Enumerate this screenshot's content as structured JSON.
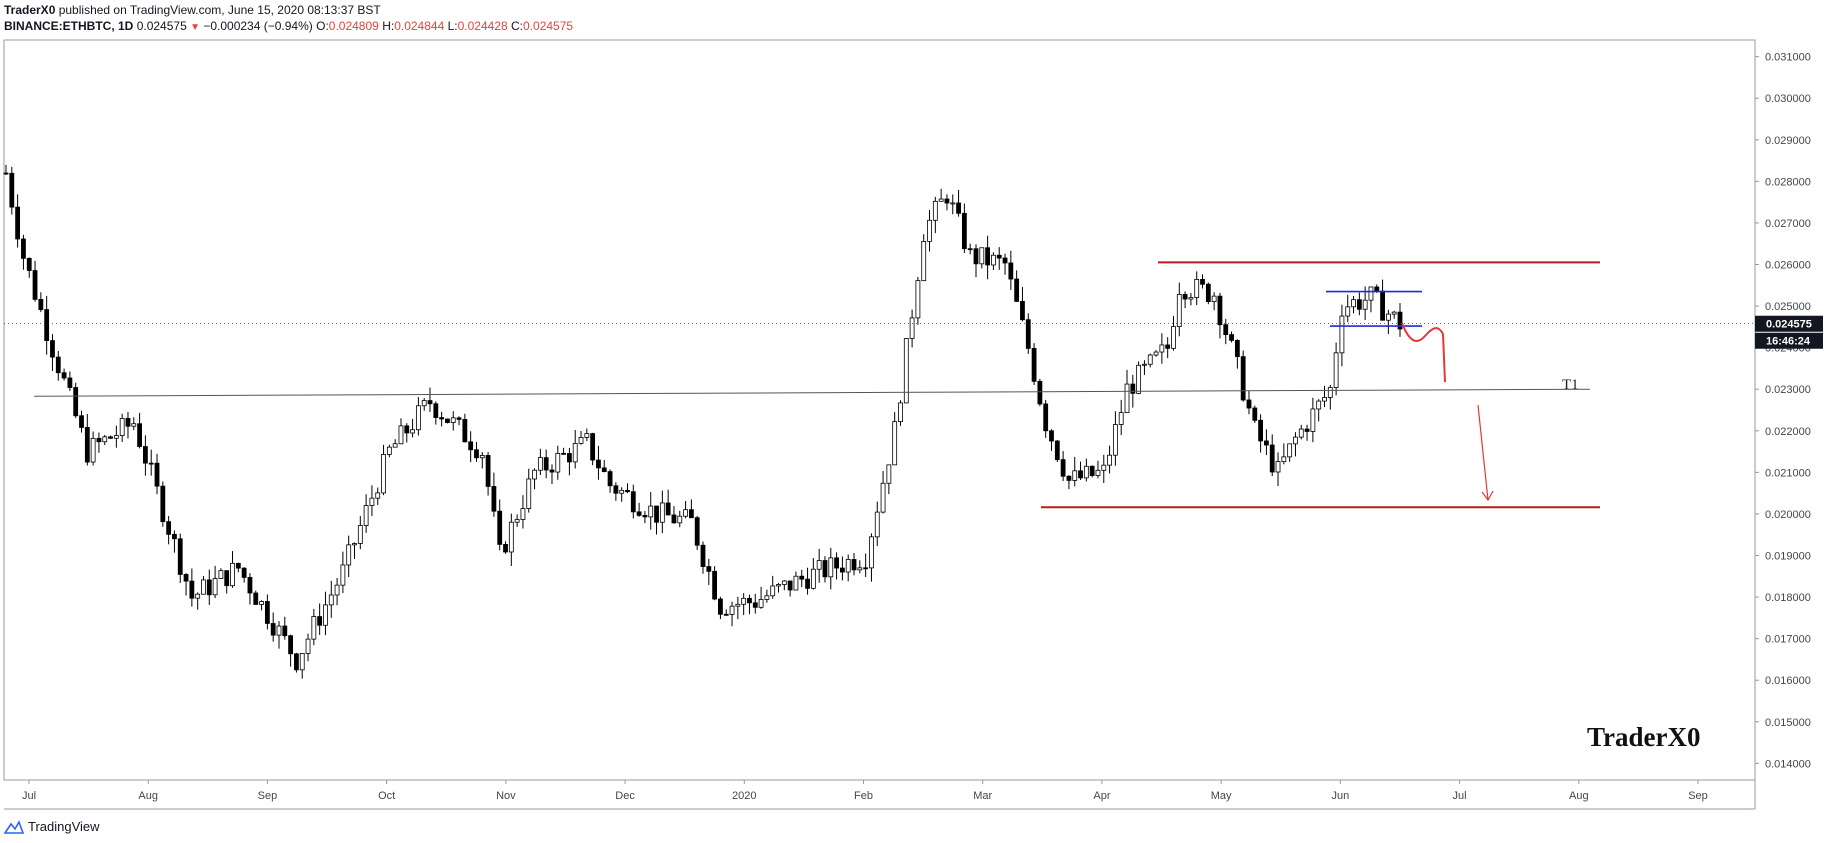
{
  "header": {
    "author": "TraderX0",
    "published_text": " published on TradingView.com, June 15, 2020 08:13:37 BST",
    "symbol": "BINANCE:ETHBTC, 1D",
    "last": "0.024575",
    "arrow": "▼",
    "change": "−0.000234 (−0.94%)",
    "o_label": "O:",
    "o_val": "0.024809",
    "h_label": "H:",
    "h_val": "0.024844",
    "l_label": "L:",
    "l_val": "0.024428",
    "c_label": "C:",
    "c_val": "0.024575"
  },
  "price_badge": "0.024575",
  "time_badge": "16:46:24",
  "watermark": "TraderX0",
  "annotation_t1": "T1",
  "footer_brand": "TradingView",
  "colors": {
    "candle": "#000000",
    "resistance": "#b71c1c",
    "channel": "#1f2bd6",
    "projection": "#e53935",
    "trendline": "#555555"
  },
  "chart_data": {
    "type": "candlestick",
    "symbol": "BINANCE:ETHBTC",
    "interval": "1D",
    "ylim": [
      0.0136,
      0.0314
    ],
    "y_ticks": [
      "0.031000",
      "0.030000",
      "0.029000",
      "0.028000",
      "0.027000",
      "0.026000",
      "0.025000",
      "0.024000",
      "0.023000",
      "0.022000",
      "0.021000",
      "0.020000",
      "0.019000",
      "0.018000",
      "0.017000",
      "0.016000",
      "0.015000",
      "0.014000"
    ],
    "x_ticks": [
      "Jul",
      "Aug",
      "Sep",
      "Oct",
      "Nov",
      "Dec",
      "2020",
      "Feb",
      "Mar",
      "Apr",
      "May",
      "Jun",
      "Jul",
      "Aug",
      "Sep"
    ],
    "price_path": [
      [
        0,
        0.0282
      ],
      [
        15,
        0.0262
      ],
      [
        40,
        0.024
      ],
      [
        70,
        0.0215
      ],
      [
        110,
        0.0222
      ],
      [
        160,
        0.018
      ],
      [
        200,
        0.0187
      ],
      [
        250,
        0.0165
      ],
      [
        290,
        0.0186
      ],
      [
        330,
        0.0215
      ],
      [
        365,
        0.0227
      ],
      [
        410,
        0.0215
      ],
      [
        425,
        0.019
      ],
      [
        455,
        0.021
      ],
      [
        500,
        0.0217
      ],
      [
        520,
        0.0207
      ],
      [
        560,
        0.02
      ],
      [
        590,
        0.0198
      ],
      [
        615,
        0.0178
      ],
      [
        645,
        0.0179
      ],
      [
        690,
        0.0185
      ],
      [
        740,
        0.019
      ],
      [
        765,
        0.022
      ],
      [
        790,
        0.0268
      ],
      [
        810,
        0.0277
      ],
      [
        830,
        0.0262
      ],
      [
        860,
        0.026
      ],
      [
        880,
        0.024
      ],
      [
        895,
        0.0222
      ],
      [
        915,
        0.0208
      ],
      [
        945,
        0.021
      ],
      [
        965,
        0.023
      ],
      [
        1000,
        0.024
      ],
      [
        1010,
        0.0255
      ],
      [
        1040,
        0.0253
      ],
      [
        1060,
        0.0235
      ],
      [
        1075,
        0.022
      ],
      [
        1095,
        0.021
      ],
      [
        1110,
        0.0218
      ],
      [
        1140,
        0.023
      ],
      [
        1150,
        0.025
      ],
      [
        1175,
        0.0252
      ],
      [
        1200,
        0.024575
      ]
    ],
    "drawings": {
      "resistance": 0.02605,
      "support": 0.02016,
      "channel_top": 0.02535,
      "channel_bottom": 0.02452,
      "trendline_start": 0.02283,
      "trendline_end": 0.023
    }
  }
}
